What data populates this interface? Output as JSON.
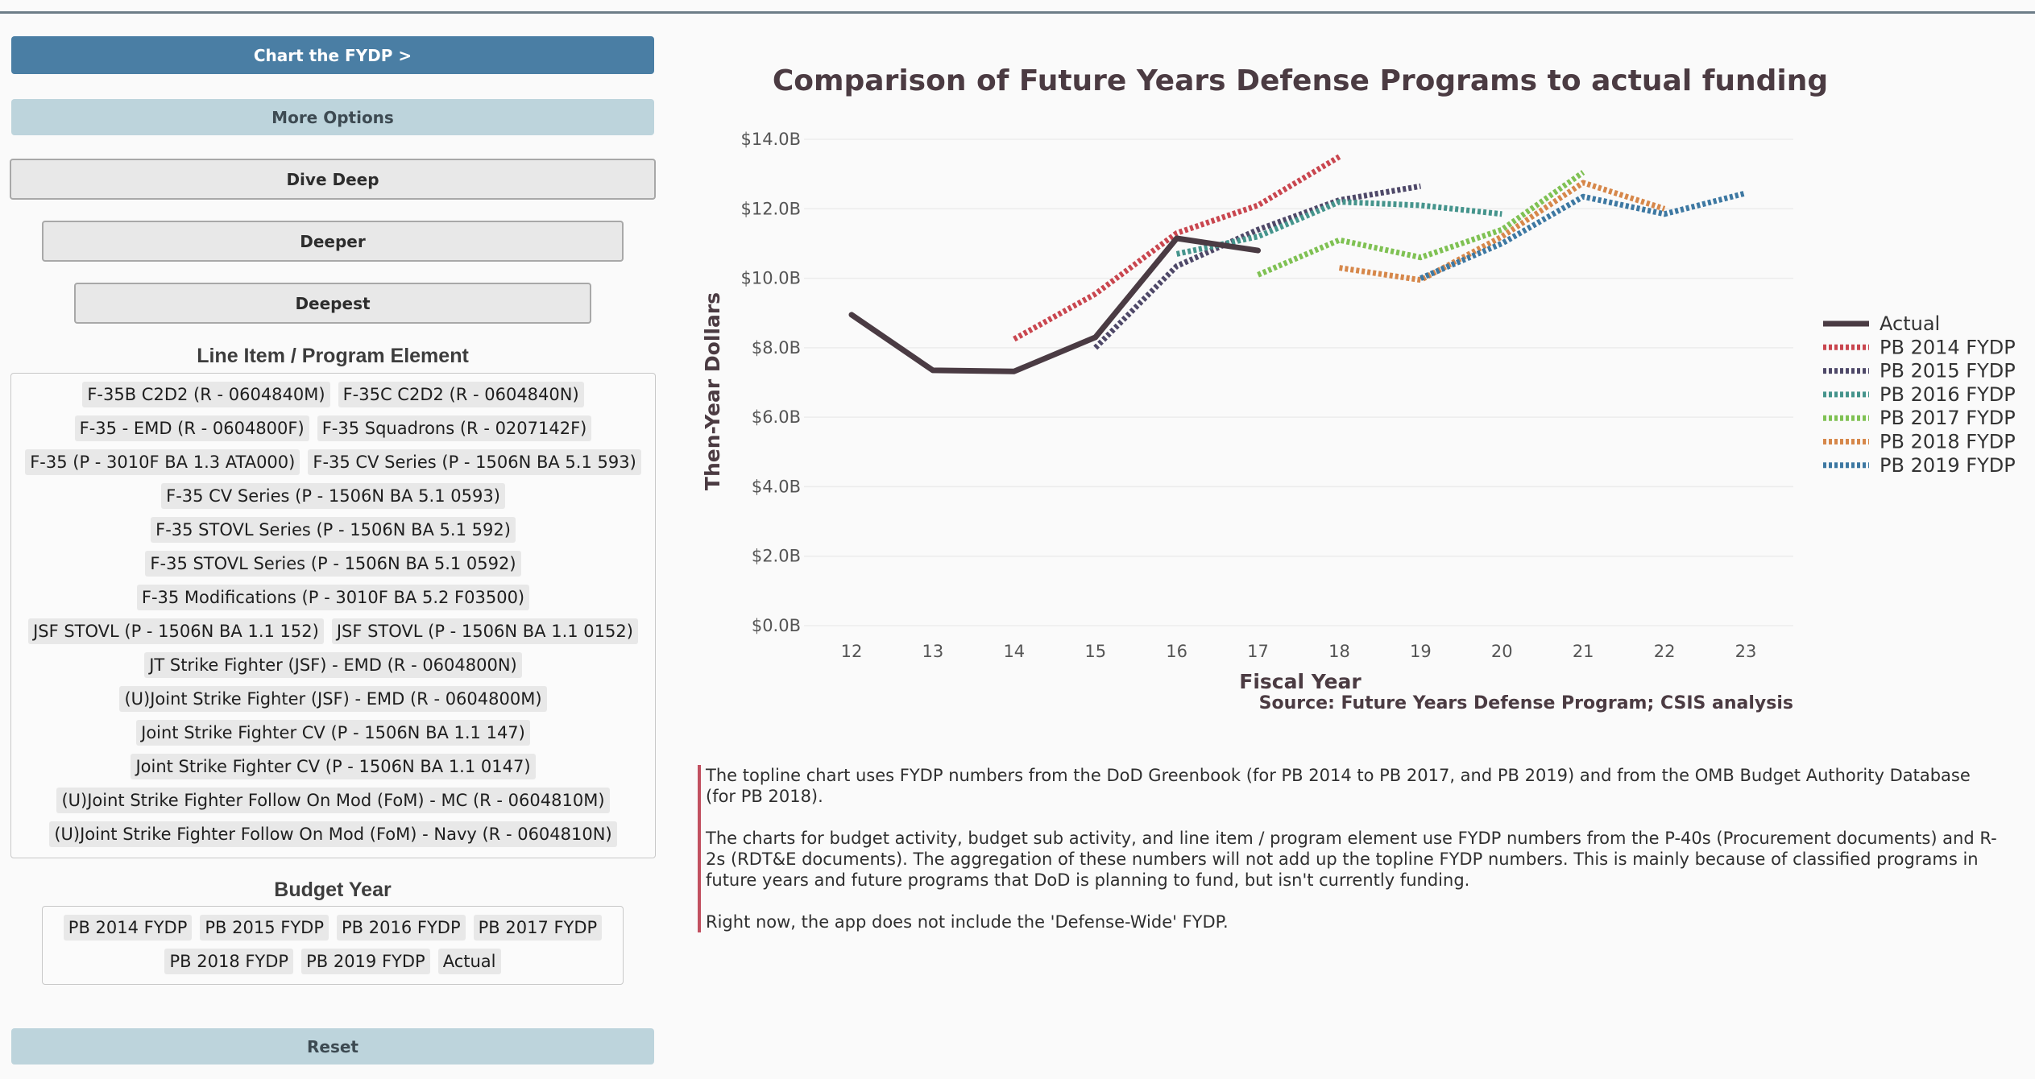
{
  "buttons": {
    "chart": "Chart the FYDP >",
    "more_options": "More Options",
    "dive_deep": "Dive Deep",
    "deeper": "Deeper",
    "deepest": "Deepest",
    "reset": "Reset"
  },
  "line_item_section": {
    "label": "Line Item / Program Element",
    "rows": [
      [
        "F-35B C2D2 (R - 0604840M)",
        "F-35C C2D2 (R - 0604840N)"
      ],
      [
        "F-35 - EMD (R - 0604800F)",
        "F-35 Squadrons (R - 0207142F)"
      ],
      [
        "F-35 (P - 3010F BA 1.3 ATA000)",
        "F-35 CV Series (P - 1506N BA 5.1 593)"
      ],
      [
        "F-35 CV Series (P - 1506N BA 5.1 0593)"
      ],
      [
        "F-35 STOVL Series (P - 1506N BA 5.1 592)"
      ],
      [
        "F-35 STOVL Series (P - 1506N BA 5.1 0592)"
      ],
      [
        "F-35 Modifications (P - 3010F BA 5.2 F03500)"
      ],
      [
        "JSF STOVL (P - 1506N BA 1.1 152)",
        "JSF STOVL (P - 1506N BA 1.1 0152)"
      ],
      [
        "JT Strike Fighter (JSF) - EMD (R - 0604800N)"
      ],
      [
        "(U)Joint Strike Fighter (JSF) - EMD (R - 0604800M)"
      ],
      [
        "Joint Strike Fighter CV (P - 1506N BA 1.1 147)"
      ],
      [
        "Joint Strike Fighter CV (P - 1506N BA 1.1 0147)"
      ],
      [
        "(U)Joint Strike Fighter Follow On Mod (FoM) - MC (R - 0604810M)"
      ],
      [
        "(U)Joint Strike Fighter Follow On Mod (FoM) - Navy (R - 0604810N)"
      ]
    ]
  },
  "budget_year_section": {
    "label": "Budget Year",
    "rows": [
      [
        "PB 2014 FYDP",
        "PB 2015 FYDP",
        "PB 2016 FYDP",
        "PB 2017 FYDP"
      ],
      [
        "PB 2018 FYDP",
        "PB 2019 FYDP",
        "Actual"
      ]
    ]
  },
  "notes": [
    "The topline chart uses FYDP numbers from the DoD Greenbook (for PB 2014 to PB 2017, and PB 2019) and from the OMB Budget Authority Database (for PB 2018).",
    "The charts for budget activity, budget sub activity, and line item / program element use FYDP numbers from the P-40s (Procurement documents) and R-2s (RDT&E documents). The aggregation of these numbers will not add up the topline FYDP numbers. This is mainly because of classified programs in future years and future programs that DoD is planning to fund, but isn't currently funding.",
    "Right now, the app does not include the 'Defense-Wide' FYDP."
  ],
  "chart_data": {
    "type": "line",
    "title": "Comparison of Future Years Defense Programs to actual funding",
    "xlabel": "Fiscal Year",
    "ylabel": "Then-Year Dollars",
    "source": "Source: Future Years Defense Program; CSIS analysis",
    "x_ticks": [
      "12",
      "13",
      "14",
      "15",
      "16",
      "17",
      "18",
      "19",
      "20",
      "21",
      "22",
      "23"
    ],
    "xlim": [
      12,
      23
    ],
    "y_ticks": [
      "$0.0B",
      "$2.0B",
      "$4.0B",
      "$6.0B",
      "$8.0B",
      "$10.0B",
      "$12.0B",
      "$14.0B"
    ],
    "ylim": [
      0,
      14
    ],
    "grid": true,
    "legend_position": "right",
    "series": [
      {
        "name": "Actual",
        "color": "#4a3b43",
        "style": "solid",
        "x": [
          12,
          13,
          14,
          15,
          16,
          17
        ],
        "y": [
          8.95,
          7.35,
          7.32,
          8.3,
          11.15,
          10.8
        ]
      },
      {
        "name": "PB 2014 FYDP",
        "color": "#c9464f",
        "style": "dotted",
        "x": [
          14,
          15,
          16,
          17,
          18
        ],
        "y": [
          8.25,
          9.55,
          11.3,
          12.1,
          13.5
        ]
      },
      {
        "name": "PB 2015 FYDP",
        "color": "#4e4868",
        "style": "dotted",
        "x": [
          15,
          16,
          17,
          18,
          19
        ],
        "y": [
          8.0,
          10.35,
          11.4,
          12.25,
          12.65
        ]
      },
      {
        "name": "PB 2016 FYDP",
        "color": "#45948c",
        "style": "dotted",
        "x": [
          16,
          17,
          18,
          19,
          20
        ],
        "y": [
          10.7,
          11.2,
          12.2,
          12.1,
          11.85
        ]
      },
      {
        "name": "PB 2017 FYDP",
        "color": "#7fc153",
        "style": "dotted",
        "x": [
          17,
          18,
          19,
          20,
          21
        ],
        "y": [
          10.1,
          11.1,
          10.6,
          11.4,
          13.05
        ]
      },
      {
        "name": "PB 2018 FYDP",
        "color": "#d6874a",
        "style": "dotted",
        "x": [
          18,
          19,
          20,
          21,
          22
        ],
        "y": [
          10.3,
          9.95,
          11.2,
          12.75,
          12.0
        ]
      },
      {
        "name": "PB 2019 FYDP",
        "color": "#3d78a2",
        "style": "dotted",
        "x": [
          19,
          20,
          21,
          22,
          23
        ],
        "y": [
          10.0,
          11.0,
          12.35,
          11.85,
          12.45
        ]
      }
    ]
  }
}
